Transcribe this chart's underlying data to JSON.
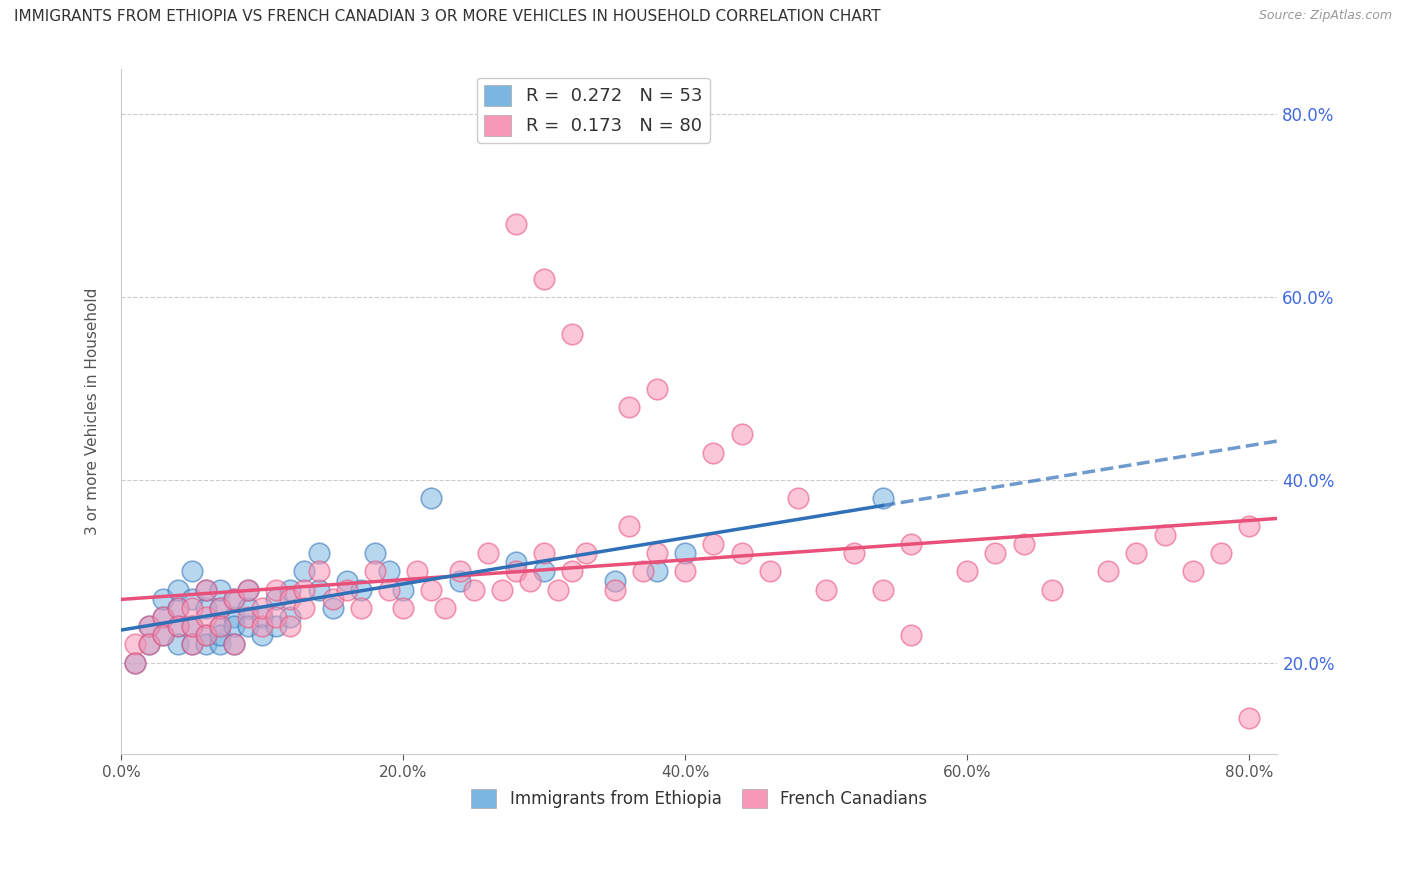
{
  "title": "IMMIGRANTS FROM ETHIOPIA VS FRENCH CANADIAN 3 OR MORE VEHICLES IN HOUSEHOLD CORRELATION CHART",
  "source": "Source: ZipAtlas.com",
  "ylabel": "3 or more Vehicles in Household",
  "xlim": [
    0.0,
    0.82
  ],
  "ylim": [
    0.1,
    0.85
  ],
  "x_ticks": [
    0.0,
    0.2,
    0.4,
    0.6,
    0.8
  ],
  "y_ticks": [
    0.2,
    0.4,
    0.6,
    0.8
  ],
  "legend1_r": "0.272",
  "legend1_n": "53",
  "legend2_r": "0.173",
  "legend2_n": "80",
  "series1_color": "#7ab6e0",
  "series2_color": "#f898b8",
  "trendline1_color": "#3070b8",
  "trendline2_color": "#e8507a",
  "grid_color": "#cccccc",
  "right_axis_color": "#4169e1",
  "background_color": "#ffffff",
  "series1_x": [
    0.01,
    0.02,
    0.02,
    0.03,
    0.03,
    0.03,
    0.04,
    0.04,
    0.04,
    0.04,
    0.05,
    0.05,
    0.05,
    0.05,
    0.06,
    0.06,
    0.06,
    0.06,
    0.07,
    0.07,
    0.07,
    0.07,
    0.07,
    0.08,
    0.08,
    0.08,
    0.08,
    0.09,
    0.09,
    0.09,
    0.1,
    0.1,
    0.11,
    0.11,
    0.12,
    0.12,
    0.13,
    0.14,
    0.14,
    0.15,
    0.16,
    0.17,
    0.18,
    0.19,
    0.2,
    0.22,
    0.24,
    0.28,
    0.3,
    0.35,
    0.38,
    0.4,
    0.54
  ],
  "series1_y": [
    0.2,
    0.24,
    0.22,
    0.25,
    0.27,
    0.23,
    0.26,
    0.24,
    0.22,
    0.28,
    0.27,
    0.24,
    0.22,
    0.3,
    0.23,
    0.26,
    0.22,
    0.28,
    0.24,
    0.22,
    0.26,
    0.28,
    0.23,
    0.25,
    0.27,
    0.24,
    0.22,
    0.26,
    0.24,
    0.28,
    0.25,
    0.23,
    0.27,
    0.24,
    0.28,
    0.25,
    0.3,
    0.28,
    0.32,
    0.26,
    0.29,
    0.28,
    0.32,
    0.3,
    0.28,
    0.38,
    0.29,
    0.31,
    0.3,
    0.29,
    0.3,
    0.32,
    0.38
  ],
  "series2_x": [
    0.01,
    0.01,
    0.02,
    0.02,
    0.03,
    0.03,
    0.04,
    0.04,
    0.05,
    0.05,
    0.05,
    0.06,
    0.06,
    0.06,
    0.07,
    0.07,
    0.08,
    0.08,
    0.09,
    0.09,
    0.1,
    0.1,
    0.11,
    0.11,
    0.12,
    0.12,
    0.13,
    0.13,
    0.14,
    0.15,
    0.16,
    0.17,
    0.18,
    0.19,
    0.2,
    0.21,
    0.22,
    0.23,
    0.24,
    0.25,
    0.26,
    0.27,
    0.28,
    0.29,
    0.3,
    0.31,
    0.32,
    0.33,
    0.35,
    0.36,
    0.37,
    0.38,
    0.4,
    0.42,
    0.44,
    0.46,
    0.5,
    0.52,
    0.54,
    0.56,
    0.6,
    0.62,
    0.64,
    0.66,
    0.7,
    0.72,
    0.74,
    0.76,
    0.78,
    0.8,
    0.28,
    0.3,
    0.32,
    0.36,
    0.38,
    0.42,
    0.44,
    0.48,
    0.56,
    0.8
  ],
  "series2_y": [
    0.22,
    0.2,
    0.24,
    0.22,
    0.25,
    0.23,
    0.26,
    0.24,
    0.22,
    0.26,
    0.24,
    0.25,
    0.28,
    0.23,
    0.26,
    0.24,
    0.22,
    0.27,
    0.25,
    0.28,
    0.24,
    0.26,
    0.25,
    0.28,
    0.27,
    0.24,
    0.28,
    0.26,
    0.3,
    0.27,
    0.28,
    0.26,
    0.3,
    0.28,
    0.26,
    0.3,
    0.28,
    0.26,
    0.3,
    0.28,
    0.32,
    0.28,
    0.3,
    0.29,
    0.32,
    0.28,
    0.3,
    0.32,
    0.28,
    0.35,
    0.3,
    0.32,
    0.3,
    0.33,
    0.32,
    0.3,
    0.28,
    0.32,
    0.28,
    0.33,
    0.3,
    0.32,
    0.33,
    0.28,
    0.3,
    0.32,
    0.34,
    0.3,
    0.32,
    0.14,
    0.68,
    0.62,
    0.56,
    0.48,
    0.5,
    0.43,
    0.45,
    0.38,
    0.23,
    0.35
  ]
}
